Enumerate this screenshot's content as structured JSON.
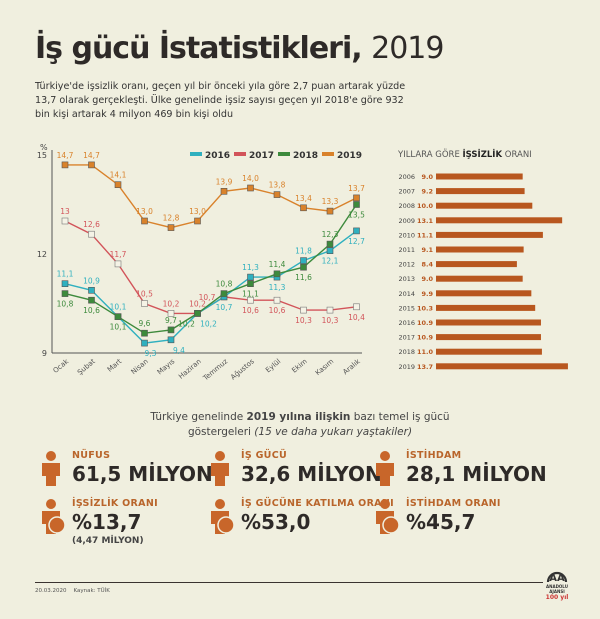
{
  "header": {
    "title_bold": "İş gücü İstatistikleri,",
    "title_light": "2019",
    "intro": "Türkiye'de işsizlik oranı, geçen yıl bir önceki yıla göre 2,7 puan artarak yüzde 13,7 olarak gerçekleşti. Ülke genelinde işsiz sayısı geçen yıl 2018'e göre 932 bin kişi artarak 4 milyon 469 bin kişi oldu"
  },
  "chart_data": [
    {
      "type": "line",
      "ylabel": "%",
      "ylim": [
        9,
        15
      ],
      "yticks": [
        9,
        12,
        15
      ],
      "legend": "top-right",
      "grid": false,
      "categories": [
        "Ocak",
        "Şubat",
        "Mart",
        "Nisan",
        "Mayıs",
        "Haziran",
        "Temmuz",
        "Ağustos",
        "Eylül",
        "Ekim",
        "Kasım",
        "Aralık"
      ],
      "series": [
        {
          "name": "2016",
          "color": "#2fb0bf",
          "values": [
            11.1,
            10.9,
            10.1,
            9.3,
            9.4,
            10.2,
            10.7,
            11.3,
            11.3,
            11.8,
            12.1,
            12.7
          ],
          "labels": [
            "11,1",
            "10,9",
            "10,1",
            "9,3",
            "9,4",
            "10,2",
            "10,7",
            "11,3",
            "11,3",
            "11,8",
            "12,1",
            "12,7"
          ]
        },
        {
          "name": "2017",
          "color": "#d2545a",
          "values": [
            13,
            12.6,
            11.7,
            10.5,
            10.2,
            10.2,
            10.7,
            10.6,
            10.6,
            10.3,
            10.3,
            10.4
          ],
          "labels": [
            "13",
            "12,6",
            "11,7",
            "10,5",
            "10,2",
            "10,2",
            "10,7",
            "10,6",
            "10,6",
            "10,3",
            "10,3",
            "10,4"
          ]
        },
        {
          "name": "2018",
          "color": "#3d8a3c",
          "values": [
            10.8,
            10.6,
            10.1,
            9.6,
            9.7,
            10.2,
            10.8,
            11.1,
            11.4,
            11.6,
            12.3,
            13.5
          ],
          "labels": [
            "10,8",
            "10,6",
            "10,1",
            "9,6",
            "9,7",
            "10,2",
            "10,8",
            "11,1",
            "11,4",
            "11,6",
            "12,3",
            "13,5"
          ]
        },
        {
          "name": "2019",
          "color": "#d9822b",
          "values": [
            14.7,
            14.7,
            14.1,
            13.0,
            12.8,
            13.0,
            13.9,
            14.0,
            13.8,
            13.4,
            13.3,
            13.7
          ],
          "labels": [
            "14,7",
            "14,7",
            "14,1",
            "13,0",
            "12,8",
            "13,0",
            "13,9",
            "14,0",
            "13,8",
            "13,4",
            "13,3",
            "13,7"
          ]
        }
      ]
    },
    {
      "type": "bar",
      "title": "YILLARA GÖRE İŞSİZLİK ORANI",
      "title_pre": "YILLARA GÖRE ",
      "title_bold": "İŞSİZLİK",
      "title_post": " ORANI",
      "orientation": "horizontal",
      "color": "#b8571f",
      "categories": [
        "2006",
        "2007",
        "2008",
        "2009",
        "2010",
        "2011",
        "2012",
        "2013",
        "2014",
        "2015",
        "2016",
        "2017",
        "2018",
        "2019"
      ],
      "values": [
        9.0,
        9.2,
        10.0,
        13.1,
        11.1,
        9.1,
        8.4,
        9.0,
        9.9,
        10.3,
        10.9,
        10.9,
        11.0,
        13.7
      ],
      "labels": [
        "9.0",
        "9.2",
        "10.0",
        "13.1",
        "11.1",
        "9.1",
        "8.4",
        "9.0",
        "9.9",
        "10.3",
        "10.9",
        "10.9",
        "11.0",
        "13.7"
      ]
    }
  ],
  "indicators": {
    "subtitle_pre": "Türkiye genelinde ",
    "subtitle_bold": "2019 yılına ilişkin",
    "subtitle_post": " bazı temel iş gücü",
    "subtitle_line2": "göstergeleri ",
    "subtitle_italic": "(15 ve daha yukarı yaştakiler)",
    "items": [
      {
        "label": "NÜFUS",
        "value": "61,5 MİLYON",
        "icon": "population-icon"
      },
      {
        "label": "İŞ GÜCÜ",
        "value": "32,6 MİLYON",
        "icon": "workforce-icon"
      },
      {
        "label": "İSTİHDAM",
        "value": "28,1 MİLYON",
        "icon": "employment-icon"
      },
      {
        "label": "İŞSİZLİK ORANI",
        "value": "%13,7",
        "extra": "(4,47 MİLYON)",
        "icon": "unemployed-icon"
      },
      {
        "label": "İŞ GÜCÜNE KATILMA ORANI",
        "value": "%53,0",
        "icon": "participation-icon"
      },
      {
        "label": "İSTİHDAM ORANI",
        "value": "%45,7",
        "icon": "employment-rate-icon"
      }
    ]
  },
  "footer": {
    "date": "20.03.2020",
    "source": "Kaynak: TÜİK",
    "logo": "ANADOLU AJANSI",
    "logo_sub": "100 yıl"
  }
}
